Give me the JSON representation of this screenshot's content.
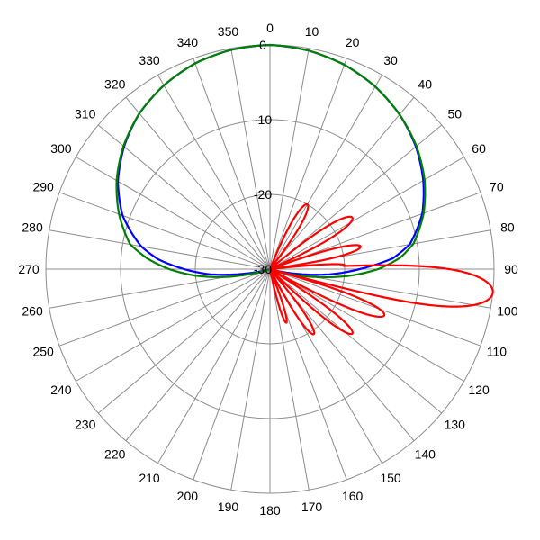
{
  "chart_data": {
    "type": "line",
    "subtype": "polar",
    "angle_ticks": [
      "0",
      "10",
      "20",
      "30",
      "40",
      "50",
      "60",
      "70",
      "80",
      "90",
      "100",
      "110",
      "120",
      "130",
      "140",
      "150",
      "160",
      "170",
      "180",
      "190",
      "200",
      "210",
      "220",
      "230",
      "240",
      "250",
      "260",
      "270",
      "280",
      "290",
      "300",
      "310",
      "320",
      "330",
      "340",
      "350"
    ],
    "radial_ticks": [
      {
        "value": 0,
        "label": "0"
      },
      {
        "value": -10,
        "label": "-10"
      },
      {
        "value": -20,
        "label": "-20"
      },
      {
        "value": -30,
        "label": "-30"
      }
    ],
    "rlim": [
      -30,
      0
    ],
    "grid": true,
    "series": [
      {
        "color": "#0000ff",
        "points": [
          [
            0,
            0
          ],
          [
            10,
            -0.3
          ],
          [
            20,
            -0.9
          ],
          [
            30,
            -1.8
          ],
          [
            40,
            -3.0
          ],
          [
            50,
            -4.5
          ],
          [
            60,
            -6.3
          ],
          [
            70,
            -8.3
          ],
          [
            80,
            -11.0
          ],
          [
            85,
            -13.5
          ],
          [
            90,
            -18.0
          ],
          [
            95,
            -22.0
          ],
          [
            100,
            -26.5
          ],
          [
            105,
            -29.5
          ],
          [
            110,
            -30
          ],
          [
            250,
            -30
          ],
          [
            255,
            -29.5
          ],
          [
            260,
            -26.5
          ],
          [
            265,
            -22.0
          ],
          [
            270,
            -18.5
          ],
          [
            275,
            -15.0
          ],
          [
            280,
            -12.5
          ],
          [
            290,
            -9.0
          ],
          [
            300,
            -6.5
          ],
          [
            310,
            -4.5
          ],
          [
            320,
            -2.8
          ],
          [
            330,
            -1.6
          ],
          [
            340,
            -0.7
          ],
          [
            350,
            -0.2
          ],
          [
            360,
            0
          ]
        ]
      },
      {
        "color": "#008000",
        "points": [
          [
            0,
            0
          ],
          [
            10,
            -0.3
          ],
          [
            20,
            -0.9
          ],
          [
            30,
            -1.8
          ],
          [
            40,
            -3.0
          ],
          [
            50,
            -4.4
          ],
          [
            60,
            -6.1
          ],
          [
            70,
            -8.1
          ],
          [
            80,
            -10.5
          ],
          [
            85,
            -12.5
          ],
          [
            90,
            -15.5
          ],
          [
            95,
            -19.5
          ],
          [
            100,
            -24.0
          ],
          [
            105,
            -28.0
          ],
          [
            110,
            -30
          ],
          [
            250,
            -30
          ],
          [
            255,
            -28.0
          ],
          [
            260,
            -24.0
          ],
          [
            265,
            -20.0
          ],
          [
            270,
            -16.5
          ],
          [
            275,
            -13.5
          ],
          [
            280,
            -11.0
          ],
          [
            290,
            -8.5
          ],
          [
            300,
            -6.3
          ],
          [
            310,
            -4.4
          ],
          [
            320,
            -2.8
          ],
          [
            330,
            -1.6
          ],
          [
            340,
            -0.7
          ],
          [
            350,
            -0.2
          ],
          [
            360,
            0
          ]
        ]
      },
      {
        "color": "#ff0000",
        "lobes": [
          {
            "center": 30,
            "halfwidth": 10,
            "peak": -20
          },
          {
            "center": 58,
            "halfwidth": 9,
            "peak": -17
          },
          {
            "center": 76,
            "halfwidth": 7,
            "peak": -17.5
          },
          {
            "center": 87,
            "halfwidth": 4,
            "peak": -20
          },
          {
            "center": 96,
            "halfwidth": 9,
            "peak": 0
          },
          {
            "center": 112,
            "halfwidth": 7,
            "peak": -13.5
          },
          {
            "center": 128,
            "halfwidth": 7,
            "peak": -16
          },
          {
            "center": 146,
            "halfwidth": 8,
            "peak": -19.5
          },
          {
            "center": 163,
            "halfwidth": 7,
            "peak": -22.5
          }
        ]
      }
    ]
  }
}
